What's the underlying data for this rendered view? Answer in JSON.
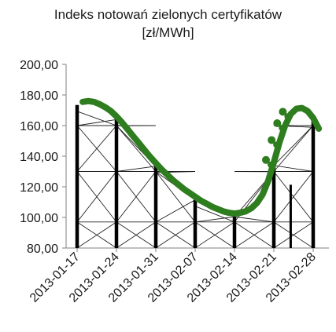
{
  "chart_data": {
    "type": "line",
    "title": [
      "Indeks notowań zielonych certyfikatów",
      "[zł/MWh]"
    ],
    "xlabel": "",
    "ylabel": "",
    "x_ticks": [
      "2013-01-17",
      "2013-01-24",
      "2013-01-31",
      "2013-02-07",
      "2013-02-14",
      "2013-02-21",
      "2013-02-28"
    ],
    "y_ticks": [
      "80,00",
      "100,00",
      "120,00",
      "140,00",
      "160,00",
      "180,00",
      "200,00"
    ],
    "ylim": [
      80,
      200
    ],
    "grid": false,
    "series": [
      {
        "color": "#2e7d1e",
        "x": [
          "2013-01-18",
          "2013-01-19",
          "2013-01-20",
          "2013-01-21",
          "2013-01-22",
          "2013-01-23",
          "2013-01-24",
          "2013-01-25",
          "2013-01-26",
          "2013-01-27",
          "2013-01-28",
          "2013-01-29",
          "2013-01-30",
          "2013-01-31",
          "2013-02-01",
          "2013-02-02",
          "2013-02-03",
          "2013-02-04",
          "2013-02-05",
          "2013-02-06",
          "2013-02-07",
          "2013-02-08",
          "2013-02-09",
          "2013-02-10",
          "2013-02-11",
          "2013-02-12",
          "2013-02-13",
          "2013-02-14",
          "2013-02-15",
          "2013-02-16",
          "2013-02-17",
          "2013-02-18",
          "2013-02-19",
          "2013-02-20",
          "2013-02-21",
          "2013-02-22",
          "2013-02-23",
          "2013-02-24",
          "2013-02-25",
          "2013-02-26",
          "2013-02-27",
          "2013-02-28",
          "2013-03-01"
        ],
        "values": [
          175.5,
          176.0,
          175.5,
          174.0,
          172.0,
          169.5,
          166.0,
          162.0,
          157.5,
          153.0,
          148.5,
          144.0,
          139.5,
          135.5,
          131.5,
          128.0,
          124.5,
          121.5,
          118.5,
          116.0,
          113.5,
          111.0,
          109.0,
          107.0,
          105.5,
          104.0,
          103.0,
          102.5,
          103.0,
          104.0,
          106.0,
          109.5,
          115.0,
          124.0,
          136.0,
          149.0,
          160.0,
          167.5,
          171.0,
          171.5,
          169.5,
          165.0,
          158.0
        ]
      }
    ]
  }
}
